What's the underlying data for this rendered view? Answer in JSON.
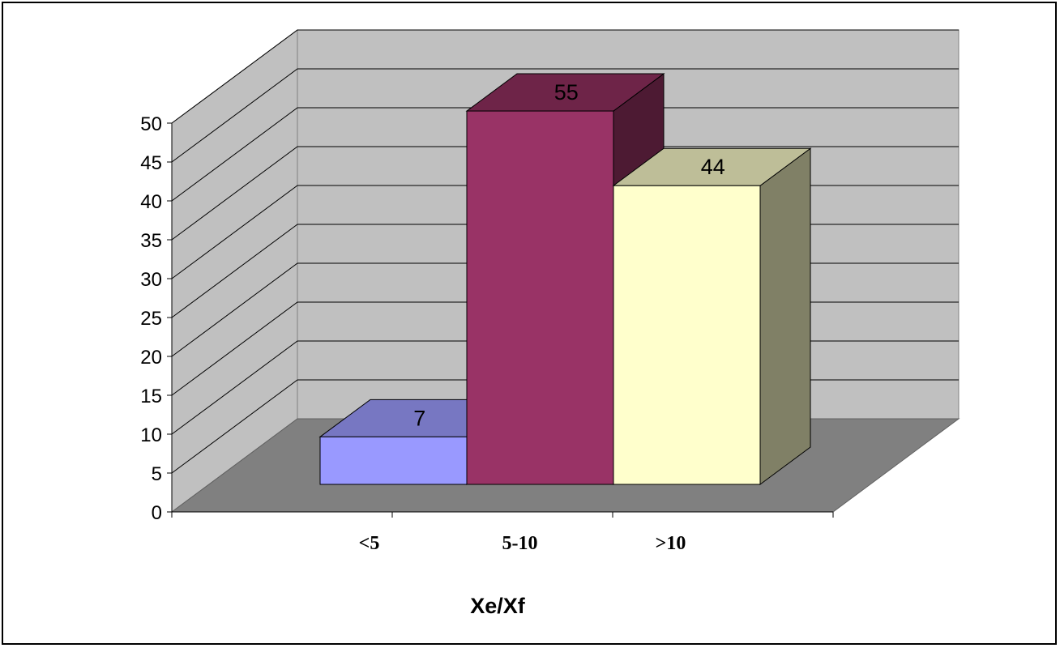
{
  "chart_data": {
    "type": "bar",
    "categories": [
      "<5",
      "5-10",
      ">10"
    ],
    "values": [
      7,
      55,
      44
    ],
    "data_labels": [
      "7",
      "55",
      "44"
    ],
    "title": "",
    "xlabel": "Xe/Xf",
    "ylabel": "",
    "ylim": [
      0,
      50
    ],
    "yticks": [
      "0",
      "5",
      "10",
      "15",
      "20",
      "25",
      "30",
      "35",
      "40",
      "45",
      "50"
    ],
    "grid": true,
    "legend": "none",
    "colors": {
      "bars_front": [
        "#9999ff",
        "#993366",
        "#ffffcc"
      ],
      "bars_top": [
        "#7777c2",
        "#6e2448",
        "#bebe98"
      ],
      "bars_side": [
        "#6b6bb3",
        "#4d1a33",
        "#808066"
      ],
      "back_wall": "#c0c0c0",
      "floor": "#808080",
      "gridline": "#000000"
    }
  }
}
